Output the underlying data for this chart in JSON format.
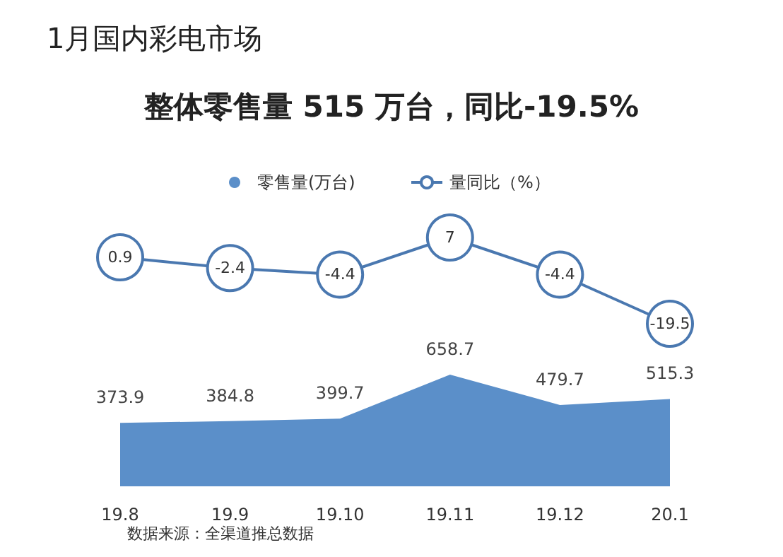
{
  "chart_data": [
    {
      "type": "line",
      "title": "1月国内彩电市场",
      "subtitle": "整体零售量 515 万台，同比-19.5%",
      "categories": [
        "19.8",
        "19.9",
        "19.10",
        "19.11",
        "19.12",
        "20.1"
      ],
      "series": [
        {
          "name": "量同比（%）",
          "color": "#4a78b0",
          "values": [
            0.9,
            -2.4,
            -4.4,
            7.0,
            -4.4,
            -19.5
          ]
        }
      ],
      "marker": "circle",
      "data_labels": true,
      "legend": "top",
      "tick_labels": false
    },
    {
      "type": "area",
      "categories": [
        "19.8",
        "19.9",
        "19.10",
        "19.11",
        "19.12",
        "20.1"
      ],
      "series": [
        {
          "name": "零售量(万台)",
          "color": "#5b8fc9",
          "values": [
            373.9,
            384.8,
            399.7,
            658.7,
            479.7,
            515.3
          ]
        }
      ],
      "data_labels": true,
      "legend": "top",
      "annotations": [
        "数据来源：全渠道推总数据"
      ]
    }
  ]
}
